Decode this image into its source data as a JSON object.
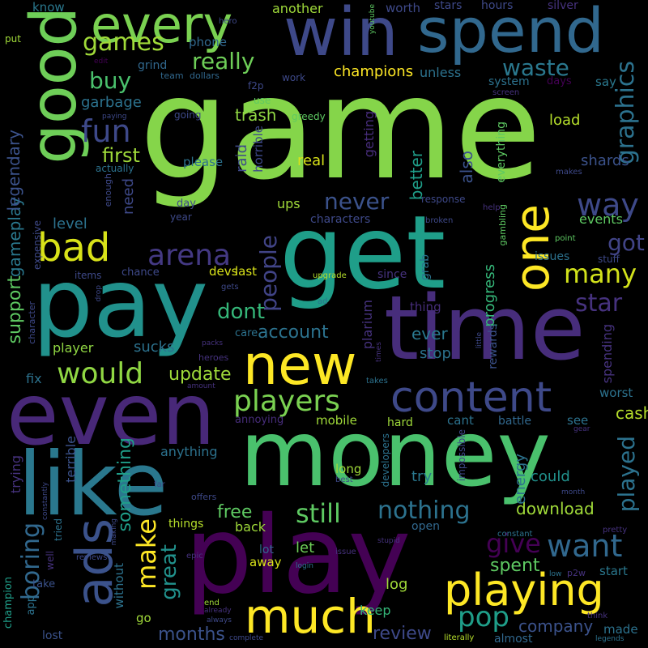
{
  "palette": [
    "#440154",
    "#3b528b",
    "#21908c",
    "#5dc863",
    "#fde725"
  ],
  "words": [
    {
      "t": "game",
      "c": "#85d54a"
    },
    {
      "t": "time",
      "c": "#472d7b"
    },
    {
      "t": "money",
      "c": "#4ac16d"
    },
    {
      "t": "play",
      "c": "#440154"
    },
    {
      "t": "pay",
      "c": "#21918c"
    },
    {
      "t": "get",
      "c": "#1f9e89"
    },
    {
      "t": "even",
      "c": "#482878"
    },
    {
      "t": "like",
      "c": "#2a788e"
    },
    {
      "t": "win",
      "c": "#3e4989"
    },
    {
      "t": "spend",
      "c": "#31688e"
    },
    {
      "t": "good",
      "c": "#6ece58"
    },
    {
      "t": "every",
      "c": "#7ad151"
    },
    {
      "t": "new",
      "c": "#fde725"
    },
    {
      "t": "content",
      "c": "#3e4989"
    },
    {
      "t": "ads",
      "c": "#3b528b"
    },
    {
      "t": "one",
      "c": "#fde725"
    },
    {
      "t": "playing",
      "c": "#fde725"
    },
    {
      "t": "much",
      "c": "#fde725"
    },
    {
      "t": "bad",
      "c": "#d8e219"
    },
    {
      "t": "games",
      "c": "#a0da39"
    },
    {
      "t": "would",
      "c": "#90d743"
    },
    {
      "t": "players",
      "c": "#7ad151"
    },
    {
      "t": "way",
      "c": "#3e4989"
    },
    {
      "t": "want",
      "c": "#31688e"
    },
    {
      "t": "arena",
      "c": "#443983"
    },
    {
      "t": "fun",
      "c": "#3e4989"
    },
    {
      "t": "really",
      "c": "#6ece58"
    },
    {
      "t": "boring",
      "c": "#31688e"
    },
    {
      "t": "make",
      "c": "#fde725"
    },
    {
      "t": "still",
      "c": "#5ec962"
    },
    {
      "t": "nothing",
      "c": "#2c728e"
    },
    {
      "t": "pop",
      "c": "#1f9e89"
    },
    {
      "t": "give",
      "c": "#440154"
    },
    {
      "t": "people",
      "c": "#414487"
    },
    {
      "t": "never",
      "c": "#3b528b"
    },
    {
      "t": "graphics",
      "c": "#2c728e"
    },
    {
      "t": "buy",
      "c": "#4ac16d"
    },
    {
      "t": "waste",
      "c": "#2a788e"
    },
    {
      "t": "many",
      "c": "#d2e21b"
    },
    {
      "t": "got",
      "c": "#414487"
    },
    {
      "t": "star",
      "c": "#46327e"
    },
    {
      "t": "dont",
      "c": "#35b779"
    },
    {
      "t": "played",
      "c": "#2c728e"
    },
    {
      "t": "great",
      "c": "#21918c"
    },
    {
      "t": "support",
      "c": "#5ec962"
    },
    {
      "t": "first",
      "c": "#9fda3a"
    },
    {
      "t": "account",
      "c": "#2c728e"
    },
    {
      "t": "update",
      "c": "#9fda3a"
    },
    {
      "t": "gameplay",
      "c": "#2a788e"
    },
    {
      "t": "legendary",
      "c": "#3b528b"
    },
    {
      "t": "review",
      "c": "#3e4989"
    },
    {
      "t": "months",
      "c": "#3b528b"
    },
    {
      "t": "company",
      "c": "#3b528b"
    },
    {
      "t": "download",
      "c": "#a0da39"
    },
    {
      "t": "spent",
      "c": "#5ec962"
    },
    {
      "t": "free",
      "c": "#5ec962"
    },
    {
      "t": "something",
      "c": "#1f9e89"
    },
    {
      "t": "level",
      "c": "#2c728e"
    },
    {
      "t": "need",
      "c": "#3e4989"
    },
    {
      "t": "trash",
      "c": "#90d743"
    },
    {
      "t": "garbage",
      "c": "#2c728e"
    },
    {
      "t": "cash",
      "c": "#b5de2b"
    },
    {
      "t": "energy",
      "c": "#2c728e"
    },
    {
      "t": "progress",
      "c": "#35b779"
    },
    {
      "t": "ever",
      "c": "#2a788e"
    },
    {
      "t": "better",
      "c": "#1f9e89"
    },
    {
      "t": "also",
      "c": "#3b528b"
    },
    {
      "t": "getting",
      "c": "#472d7b"
    },
    {
      "t": "raid",
      "c": "#3e4989"
    },
    {
      "t": "stop",
      "c": "#2c728e"
    },
    {
      "t": "sucks",
      "c": "#2c728e"
    },
    {
      "t": "load",
      "c": "#b5de2b"
    },
    {
      "t": "shards",
      "c": "#3b528b"
    },
    {
      "t": "events",
      "c": "#5ec962"
    },
    {
      "t": "champions",
      "c": "#fde725"
    },
    {
      "t": "spending",
      "c": "#46327e"
    },
    {
      "t": "worst",
      "c": "#2c728e"
    },
    {
      "t": "try",
      "c": "#2a788e"
    },
    {
      "t": "could",
      "c": "#21918c"
    },
    {
      "t": "back",
      "c": "#9fda3a"
    },
    {
      "t": "let",
      "c": "#6ece58"
    },
    {
      "t": "log",
      "c": "#a0da39"
    },
    {
      "t": "keep",
      "c": "#35b779"
    },
    {
      "t": "terrible",
      "c": "#3b528b"
    },
    {
      "t": "trying",
      "c": "#46327e"
    },
    {
      "t": "anything",
      "c": "#2c728e"
    },
    {
      "t": "plarium",
      "c": "#46327e"
    },
    {
      "t": "real",
      "c": "#d8e219"
    },
    {
      "t": "ups",
      "c": "#a0da39"
    },
    {
      "t": "last",
      "c": "#d8e219"
    },
    {
      "t": "devs",
      "c": "#d8e219"
    },
    {
      "t": "player",
      "c": "#90d743"
    },
    {
      "t": "fix",
      "c": "#2c728e"
    },
    {
      "t": "please",
      "c": "#2c728e"
    },
    {
      "t": "horrible",
      "c": "#3e4989"
    },
    {
      "t": "grind",
      "c": "#31688e"
    },
    {
      "t": "phone",
      "c": "#31688e"
    },
    {
      "t": "hours",
      "c": "#3e4989"
    },
    {
      "t": "silver",
      "c": "#46327e"
    },
    {
      "t": "stars",
      "c": "#3e4989"
    },
    {
      "t": "worth",
      "c": "#3e4989"
    },
    {
      "t": "another",
      "c": "#9fda3a"
    },
    {
      "t": "know",
      "c": "#2a788e"
    },
    {
      "t": "unless",
      "c": "#2c728e"
    },
    {
      "t": "say",
      "c": "#2a788e"
    },
    {
      "t": "system",
      "c": "#2c728e"
    },
    {
      "t": "days",
      "c": "#440154"
    },
    {
      "t": "mobile",
      "c": "#a0da39"
    },
    {
      "t": "hard",
      "c": "#9fda3a"
    },
    {
      "t": "cant",
      "c": "#2c728e"
    },
    {
      "t": "battle",
      "c": "#31688e"
    },
    {
      "t": "see",
      "c": "#2c728e"
    },
    {
      "t": "long",
      "c": "#a0da39"
    },
    {
      "t": "thing",
      "c": "#472d7b"
    },
    {
      "t": "grab",
      "c": "#2c728e"
    },
    {
      "t": "since",
      "c": "#46327e"
    },
    {
      "t": "everything",
      "c": "#5ec962"
    },
    {
      "t": "rewards",
      "c": "#3b528b"
    },
    {
      "t": "issues",
      "c": "#2c728e"
    },
    {
      "t": "annoying",
      "c": "#472d7b"
    },
    {
      "t": "care",
      "c": "#2c728e"
    },
    {
      "t": "things",
      "c": "#b5de2b"
    },
    {
      "t": "open",
      "c": "#31688e"
    },
    {
      "t": "start",
      "c": "#2a788e"
    },
    {
      "t": "made",
      "c": "#2c728e"
    },
    {
      "t": "almost",
      "c": "#31688e"
    },
    {
      "t": "away",
      "c": "#d8e219"
    },
    {
      "t": "lot",
      "c": "#31688e"
    },
    {
      "t": "without",
      "c": "#2c728e"
    },
    {
      "t": "go",
      "c": "#a0da39"
    },
    {
      "t": "lost",
      "c": "#3b528b"
    },
    {
      "t": "app",
      "c": "#2c728e"
    },
    {
      "t": "take",
      "c": "#3b528b"
    },
    {
      "t": "day",
      "c": "#3e4989"
    },
    {
      "t": "year",
      "c": "#3e4989"
    },
    {
      "t": "chance",
      "c": "#3e4989"
    },
    {
      "t": "items",
      "c": "#3e4989"
    },
    {
      "t": "expensive",
      "c": "#3e4989"
    },
    {
      "t": "character",
      "c": "#3e4989"
    },
    {
      "t": "champion",
      "c": "#1f9e89"
    },
    {
      "t": "well",
      "c": "#46327e"
    },
    {
      "t": "tried",
      "c": "#2c728e"
    },
    {
      "t": "f2p",
      "c": "#3e4989"
    },
    {
      "t": "work",
      "c": "#3e4989"
    },
    {
      "t": "use",
      "c": "#5ec962"
    },
    {
      "t": "greedy",
      "c": "#5ec962"
    },
    {
      "t": "going",
      "c": "#3e4989"
    },
    {
      "t": "actually",
      "c": "#2c728e"
    },
    {
      "t": "enough",
      "c": "#3e4989"
    },
    {
      "t": "team",
      "c": "#31688e"
    },
    {
      "t": "dollars",
      "c": "#31688e"
    },
    {
      "t": "put",
      "c": "#a0da39"
    },
    {
      "t": "hero",
      "c": "#3e4989"
    },
    {
      "t": "edit",
      "c": "#440154"
    },
    {
      "t": "paying",
      "c": "#3e4989"
    },
    {
      "t": "youtube",
      "c": "#5ec962"
    },
    {
      "t": "screen",
      "c": "#46327e"
    },
    {
      "t": "makes",
      "c": "#3e4989"
    },
    {
      "t": "response",
      "c": "#3e4989"
    },
    {
      "t": "broken",
      "c": "#3e4989"
    },
    {
      "t": "help",
      "c": "#46327e"
    },
    {
      "t": "gambling",
      "c": "#5ec962"
    },
    {
      "t": "point",
      "c": "#5ec962"
    },
    {
      "t": "stuff",
      "c": "#3e4989"
    },
    {
      "t": "characters",
      "c": "#3e4989"
    },
    {
      "t": "upgrade",
      "c": "#b5de2b"
    },
    {
      "t": "ad",
      "c": "#2c728e"
    },
    {
      "t": "gets",
      "c": "#3e4989"
    },
    {
      "t": "drop",
      "c": "#3e4989"
    },
    {
      "t": "heroes",
      "c": "#46327e"
    },
    {
      "t": "packs",
      "c": "#46327e"
    },
    {
      "t": "amount",
      "c": "#46327e"
    },
    {
      "t": "little",
      "c": "#3e4989"
    },
    {
      "t": "times",
      "c": "#46327e"
    },
    {
      "t": "takes",
      "c": "#2c728e"
    },
    {
      "t": "developers",
      "c": "#2c728e"
    },
    {
      "t": "impossible",
      "c": "#3e4989"
    },
    {
      "t": "month",
      "c": "#3e4989"
    },
    {
      "t": "gear",
      "c": "#46327e"
    },
    {
      "t": "constant",
      "c": "#2c728e"
    },
    {
      "t": "pretty",
      "c": "#46327e"
    },
    {
      "t": "constantly",
      "c": "#3e4989"
    },
    {
      "t": "far",
      "c": "#3e4989"
    },
    {
      "t": "offers",
      "c": "#3e4989"
    },
    {
      "t": "best",
      "c": "#3e4989"
    },
    {
      "t": "stupid",
      "c": "#46327e"
    },
    {
      "t": "making",
      "c": "#3e4989"
    },
    {
      "t": "reviews",
      "c": "#3e4989"
    },
    {
      "t": "epic",
      "c": "#46327e"
    },
    {
      "t": "login",
      "c": "#2c728e"
    },
    {
      "t": "issue",
      "c": "#46327e"
    },
    {
      "t": "low",
      "c": "#2c728e"
    },
    {
      "t": "p2w",
      "c": "#46327e"
    },
    {
      "t": "end",
      "c": "#a0da39"
    },
    {
      "t": "already",
      "c": "#46327e"
    },
    {
      "t": "always",
      "c": "#3e4989"
    },
    {
      "t": "complete",
      "c": "#3e4989"
    },
    {
      "t": "literally",
      "c": "#b5de2b"
    },
    {
      "t": "think",
      "c": "#46327e"
    },
    {
      "t": "legends",
      "c": "#2c728e"
    }
  ]
}
